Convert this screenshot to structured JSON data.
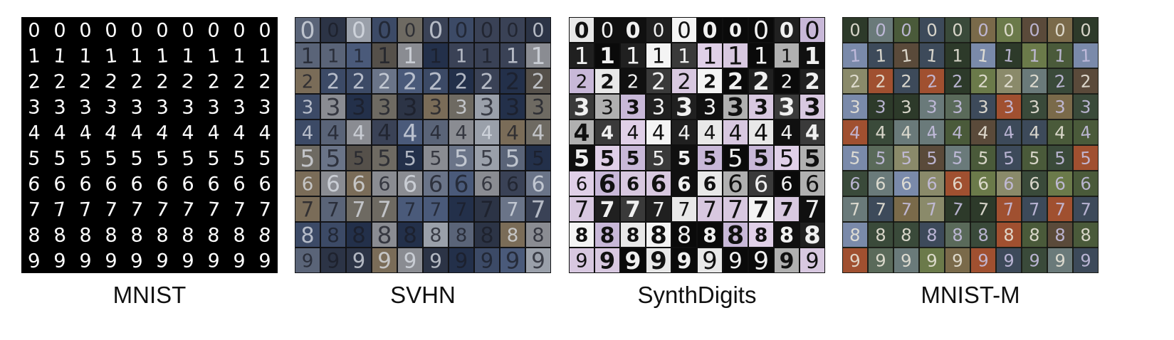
{
  "datasets": [
    {
      "label": "MNIST",
      "style": "mnist",
      "background": "#000000",
      "digit_color": "#ffffff",
      "grid_line": "#000000"
    },
    {
      "label": "SVHN",
      "style": "svhn",
      "background": "#1a1f2b",
      "digit_color": "#e6e8ee",
      "grid_line": "#111111"
    },
    {
      "label": "SynthDigits",
      "style": "synth",
      "background": "#0d0d0d",
      "digit_color": "#f2f2f2",
      "grid_line": "#111111"
    },
    {
      "label": "MNIST-M",
      "style": "mnistm",
      "background": "#3d4a32",
      "digit_color": "#b9b2d6",
      "grid_line": "#111111"
    }
  ],
  "grid": {
    "rows_digits": [
      "0",
      "1",
      "2",
      "3",
      "4",
      "5",
      "6",
      "7",
      "8",
      "9"
    ],
    "cols_per_row": 10
  },
  "icons": {
    "sample_tile": "digit-sample-tile"
  }
}
